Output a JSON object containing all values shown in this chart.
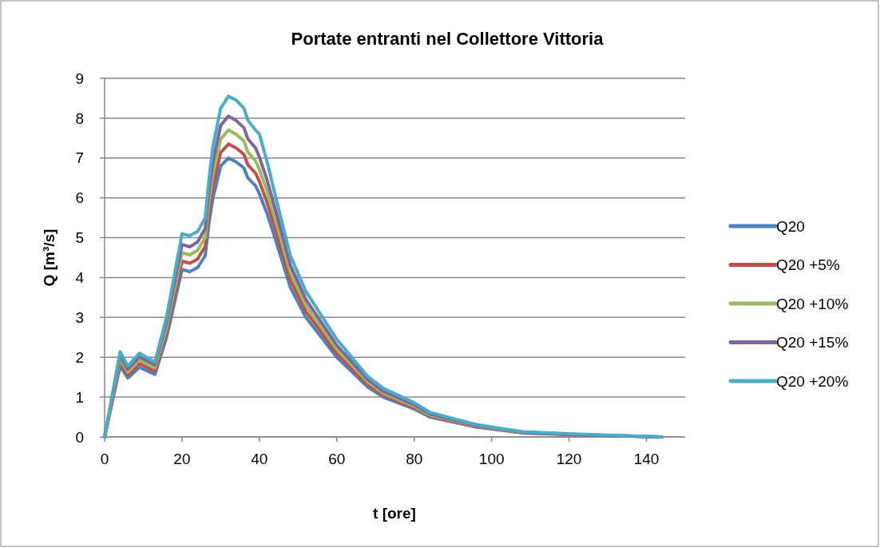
{
  "chart_data": {
    "type": "line",
    "title": "Portate entranti nel Collettore Vittoria",
    "xlabel": "t [ore]",
    "ylabel": "Q  [m³/s]",
    "x": [
      0,
      4,
      6,
      9,
      13,
      16,
      20,
      22,
      24,
      26,
      27,
      28,
      30,
      32,
      34,
      36,
      37,
      39,
      40,
      42,
      44,
      48,
      52,
      56,
      60,
      68,
      72,
      80,
      84,
      96,
      108,
      120,
      132,
      144
    ],
    "series": [
      {
        "name": "Q20",
        "color": "#4f81bd",
        "values": [
          0,
          1.78,
          1.48,
          1.75,
          1.57,
          2.5,
          4.2,
          4.15,
          4.25,
          4.55,
          5.4,
          6.0,
          6.8,
          7.0,
          6.9,
          6.75,
          6.5,
          6.3,
          6.1,
          5.6,
          5.0,
          3.75,
          3.0,
          2.5,
          2.0,
          1.25,
          1.0,
          0.7,
          0.5,
          0.25,
          0.1,
          0.06,
          0.03,
          0
        ]
      },
      {
        "name": "Q20 +5%",
        "color": "#c0504d",
        "values": [
          0,
          1.87,
          1.55,
          1.84,
          1.65,
          2.63,
          4.41,
          4.36,
          4.46,
          4.78,
          5.67,
          6.3,
          7.14,
          7.35,
          7.25,
          7.09,
          6.83,
          6.62,
          6.41,
          5.88,
          5.25,
          3.94,
          3.15,
          2.63,
          2.1,
          1.31,
          1.05,
          0.74,
          0.53,
          0.26,
          0.11,
          0.06,
          0.03,
          0
        ]
      },
      {
        "name": "Q20 +10%",
        "color": "#9bbb59",
        "values": [
          0,
          1.96,
          1.63,
          1.93,
          1.73,
          2.75,
          4.62,
          4.57,
          4.68,
          5.01,
          5.94,
          6.6,
          7.48,
          7.7,
          7.59,
          7.43,
          7.15,
          6.93,
          6.71,
          6.16,
          5.5,
          4.13,
          3.3,
          2.75,
          2.2,
          1.38,
          1.1,
          0.77,
          0.55,
          0.28,
          0.11,
          null,
          null,
          null
        ]
      },
      {
        "name": "Q20 +15%",
        "color": "#8064a2",
        "values": [
          0,
          2.05,
          1.7,
          2.01,
          1.81,
          2.88,
          4.83,
          4.77,
          4.89,
          5.23,
          6.21,
          6.9,
          7.82,
          8.05,
          7.94,
          7.76,
          7.48,
          7.25,
          7.02,
          6.44,
          5.75,
          4.31,
          3.45,
          2.88,
          2.3,
          1.44,
          1.15,
          0.81,
          0.58,
          0.29,
          0.12,
          0.07,
          0.03,
          0
        ]
      },
      {
        "name": "Q20 +20%",
        "color": "#4bacc6",
        "values": [
          0,
          2.14,
          1.78,
          2.1,
          1.88,
          3.0,
          5.1,
          5.05,
          5.15,
          5.5,
          6.5,
          7.3,
          8.25,
          8.55,
          8.45,
          8.25,
          7.95,
          7.7,
          7.6,
          6.9,
          6.1,
          4.55,
          3.65,
          3.05,
          2.45,
          1.52,
          1.22,
          0.86,
          0.62,
          0.31,
          0.13,
          0.08,
          0.04,
          0
        ]
      }
    ],
    "xlim": [
      0,
      150
    ],
    "xticks": [
      0,
      20,
      40,
      60,
      80,
      100,
      120,
      140
    ],
    "ylim": [
      0,
      9
    ],
    "yticks": [
      0,
      1,
      2,
      3,
      4,
      5,
      6,
      7,
      8,
      9
    ],
    "grid": "y",
    "legend": "right",
    "marker": "none",
    "line_style": "solid"
  }
}
